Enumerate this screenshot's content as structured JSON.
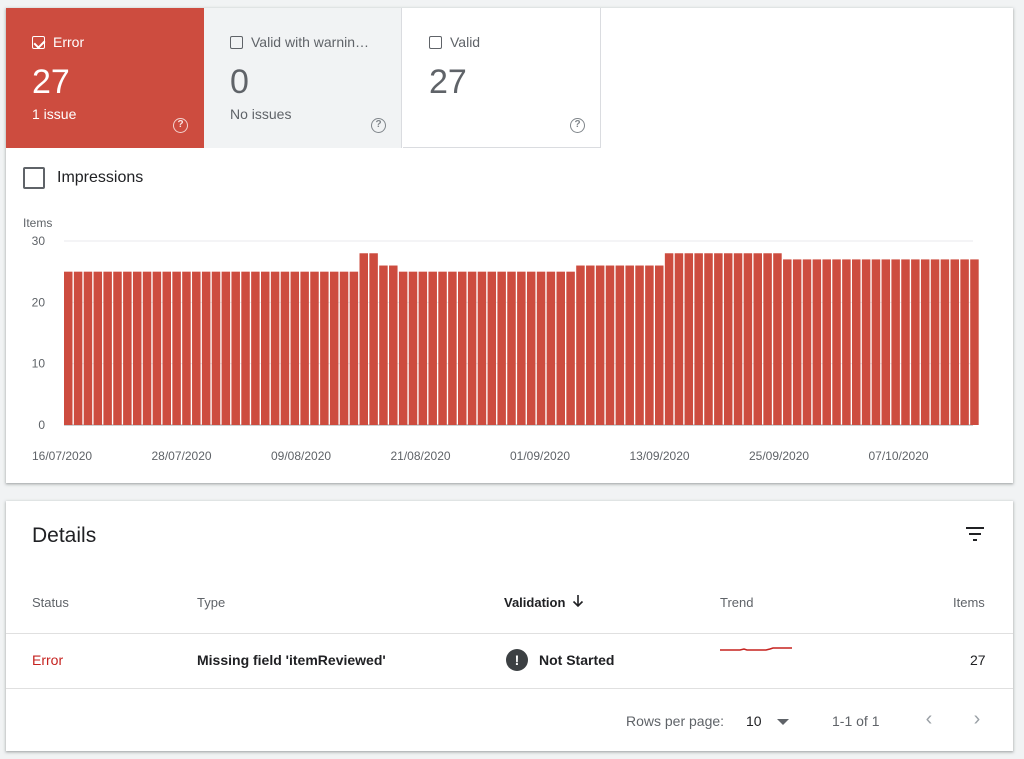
{
  "tiles": {
    "error": {
      "label": "Error",
      "count": "27",
      "sub": "1 issue",
      "checked": true
    },
    "warning": {
      "label": "Valid with warnin…",
      "count": "0",
      "sub": "No issues",
      "checked": false
    },
    "valid": {
      "label": "Valid",
      "count": "27",
      "sub": "",
      "checked": false
    }
  },
  "impressions_label": "Impressions",
  "chart_data": {
    "type": "bar",
    "ylabel": "Items",
    "ylim": [
      0,
      30
    ],
    "yticks": [
      0,
      10,
      20,
      30
    ],
    "xtick_labels": [
      "16/07/2020",
      "28/07/2020",
      "09/08/2020",
      "21/08/2020",
      "01/09/2020",
      "13/09/2020",
      "25/09/2020",
      "07/10/2020"
    ],
    "color": "#cd4c3f",
    "grid": true,
    "values": [
      25,
      25,
      25,
      25,
      25,
      25,
      25,
      25,
      25,
      25,
      25,
      25,
      25,
      25,
      25,
      25,
      25,
      25,
      25,
      25,
      25,
      25,
      25,
      25,
      25,
      25,
      25,
      25,
      25,
      25,
      28,
      28,
      26,
      26,
      25,
      25,
      25,
      25,
      25,
      25,
      25,
      25,
      25,
      25,
      25,
      25,
      25,
      25,
      25,
      25,
      25,
      25,
      26,
      26,
      26,
      26,
      26,
      26,
      26,
      26,
      26,
      28,
      28,
      28,
      28,
      28,
      28,
      28,
      28,
      28,
      28,
      28,
      28,
      27,
      27,
      27,
      27,
      27,
      27,
      27,
      27,
      27,
      27,
      27,
      27,
      27,
      27,
      27,
      27,
      27,
      27,
      27,
      27
    ]
  },
  "details": {
    "title": "Details",
    "columns": {
      "status": "Status",
      "type": "Type",
      "validation": "Validation",
      "trend": "Trend",
      "items": "Items"
    },
    "row": {
      "status": "Error",
      "type": "Missing field 'itemReviewed'",
      "validation": "Not Started",
      "items": "27",
      "status_color": "#c5221f"
    },
    "footer": {
      "rows_per_page_label": "Rows per page:",
      "rows_per_page": "10",
      "range": "1-1 of 1"
    }
  }
}
